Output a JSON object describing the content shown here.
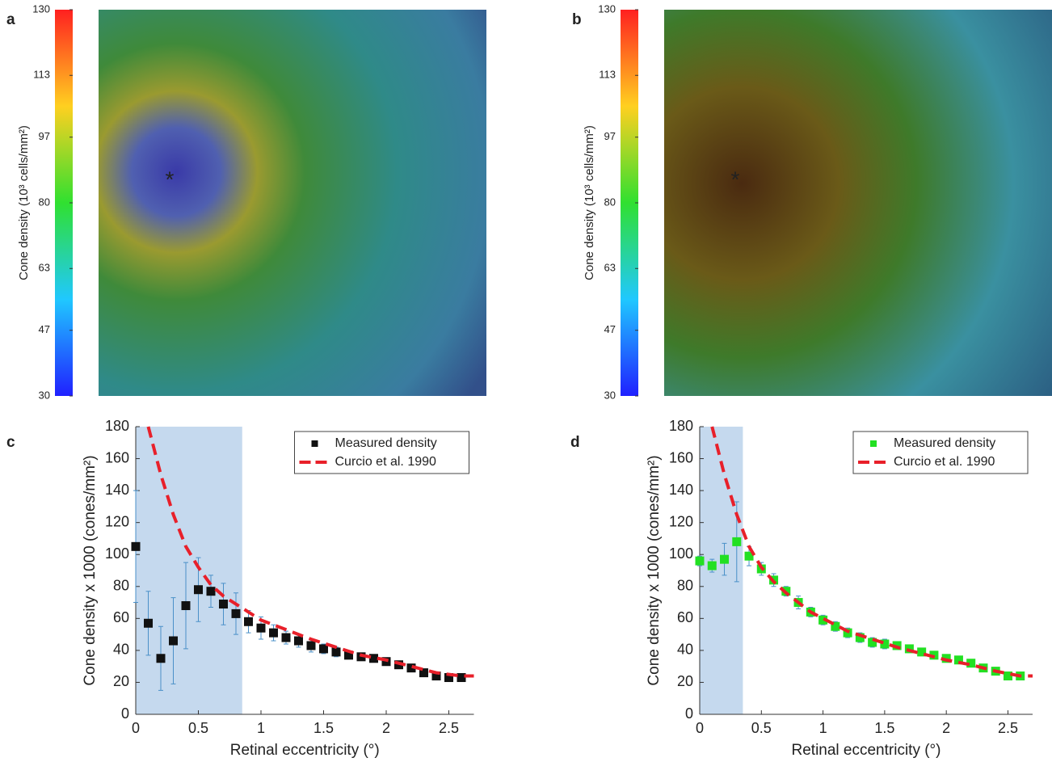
{
  "chart_data": [
    {
      "type": "heatmap",
      "panel_label": "a",
      "colorbar_label": "Cone density (10³ cells/mm²)",
      "clim": [
        30,
        130
      ],
      "cticks": [
        30,
        47,
        63,
        80,
        97,
        113,
        130
      ],
      "annotation": "*"
    },
    {
      "type": "heatmap",
      "panel_label": "b",
      "colorbar_label": "Cone density (10³ cells/mm²)",
      "clim": [
        30,
        130
      ],
      "cticks": [
        30,
        47,
        63,
        80,
        97,
        113,
        130
      ],
      "annotation": "*"
    },
    {
      "type": "scatter",
      "panel_label": "c",
      "xlabel": "Retinal eccentricity (°)",
      "ylabel": "Cone density x 1000 (cones/mm²)",
      "xlim": [
        0,
        2.7
      ],
      "xticks": [
        0,
        0.5,
        1,
        1.5,
        2,
        2.5
      ],
      "ylim": [
        0,
        180
      ],
      "yticks": [
        0,
        20,
        40,
        60,
        80,
        100,
        120,
        140,
        160,
        180
      ],
      "shade": [
        0,
        0.85
      ],
      "shade_color": "#c5d9ee",
      "legend": "upper right",
      "series": [
        {
          "name": "Measured density",
          "color": "#111111",
          "error_color": "#4a90c8",
          "x": [
            0,
            0.1,
            0.2,
            0.3,
            0.4,
            0.5,
            0.6,
            0.7,
            0.8,
            0.9,
            1.0,
            1.1,
            1.2,
            1.3,
            1.4,
            1.5,
            1.6,
            1.7,
            1.8,
            1.9,
            2.0,
            2.1,
            2.2,
            2.3,
            2.4,
            2.5,
            2.6
          ],
          "values": [
            105,
            57,
            35,
            46,
            68,
            78,
            77,
            69,
            63,
            58,
            54,
            51,
            48,
            46,
            43,
            41,
            39,
            37,
            36,
            35,
            33,
            31,
            29,
            26,
            24,
            23,
            23
          ],
          "errors": [
            35,
            20,
            20,
            27,
            27,
            20,
            10,
            13,
            13,
            7,
            7,
            5,
            4,
            4,
            4,
            3,
            3,
            2,
            2,
            2,
            2,
            2,
            2,
            1,
            1,
            1,
            1
          ]
        },
        {
          "name": "Curcio et al. 1990",
          "color": "#e8202a",
          "style": "dashed",
          "x": [
            0.1,
            0.2,
            0.3,
            0.4,
            0.5,
            0.6,
            0.7,
            0.8,
            0.9,
            1.0,
            1.2,
            1.4,
            1.6,
            1.8,
            2.0,
            2.2,
            2.4,
            2.6,
            2.7
          ],
          "values": [
            180,
            150,
            125,
            105,
            92,
            81,
            74,
            69,
            64,
            59,
            53,
            47,
            42,
            37,
            34,
            30,
            26,
            24,
            24
          ]
        }
      ]
    },
    {
      "type": "scatter",
      "panel_label": "d",
      "xlabel": "Retinal eccentricity (°)",
      "ylabel": "Cone density x 1000 (cones/mm²)",
      "xlim": [
        0,
        2.7
      ],
      "xticks": [
        0,
        0.5,
        1,
        1.5,
        2,
        2.5
      ],
      "ylim": [
        0,
        180
      ],
      "yticks": [
        0,
        20,
        40,
        60,
        80,
        100,
        120,
        140,
        160,
        180
      ],
      "shade": [
        0,
        0.35
      ],
      "shade_color": "#c5d9ee",
      "legend": "upper right",
      "series": [
        {
          "name": "Measured density",
          "color": "#22e022",
          "error_color": "#4a90c8",
          "x": [
            0,
            0.1,
            0.2,
            0.3,
            0.4,
            0.5,
            0.6,
            0.7,
            0.8,
            0.9,
            1.0,
            1.1,
            1.2,
            1.3,
            1.4,
            1.5,
            1.6,
            1.7,
            1.8,
            1.9,
            2.0,
            2.1,
            2.2,
            2.3,
            2.4,
            2.5,
            2.6
          ],
          "values": [
            96,
            93,
            97,
            108,
            99,
            91,
            84,
            77,
            70,
            64,
            59,
            55,
            51,
            48,
            45,
            44,
            43,
            41,
            39,
            37,
            35,
            34,
            32,
            29,
            27,
            24,
            24
          ],
          "errors": [
            3,
            4,
            10,
            25,
            6,
            4,
            4,
            3,
            4,
            3,
            3,
            3,
            3,
            3,
            3,
            3,
            2,
            2,
            2,
            2,
            2,
            2,
            2,
            2,
            2,
            1,
            1
          ]
        },
        {
          "name": "Curcio et al. 1990",
          "color": "#e8202a",
          "style": "dashed",
          "x": [
            0.1,
            0.2,
            0.3,
            0.4,
            0.5,
            0.6,
            0.7,
            0.8,
            0.9,
            1.0,
            1.2,
            1.4,
            1.6,
            1.8,
            2.0,
            2.2,
            2.4,
            2.6,
            2.7
          ],
          "values": [
            180,
            150,
            125,
            105,
            92,
            83,
            76,
            70,
            64,
            60,
            52,
            47,
            42,
            38,
            34,
            31,
            27,
            24,
            24
          ]
        }
      ]
    }
  ]
}
